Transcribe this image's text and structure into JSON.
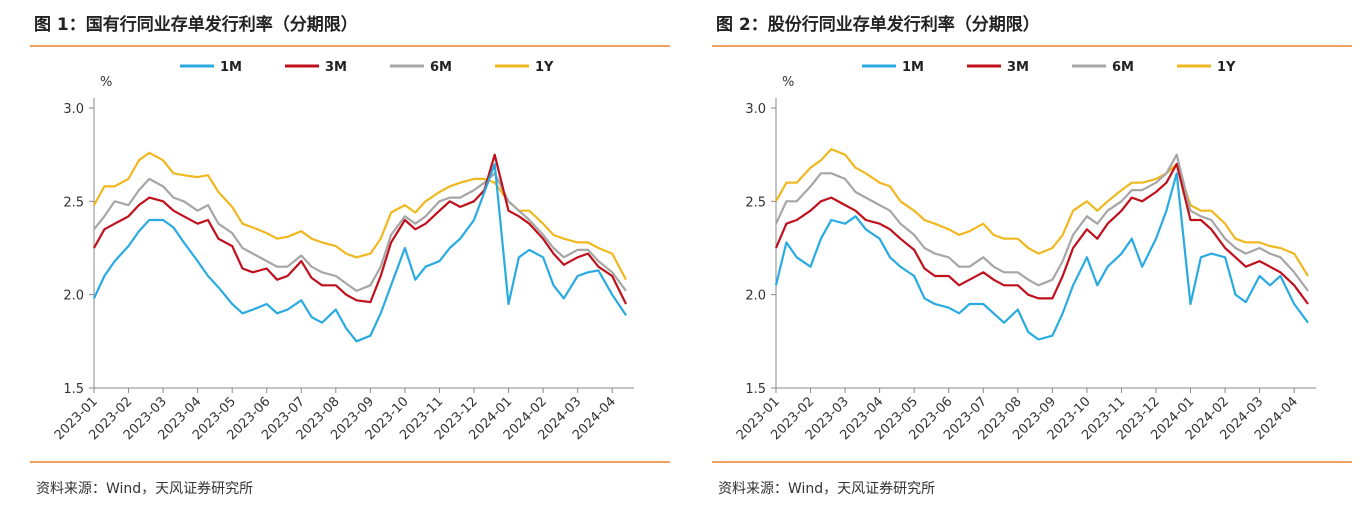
{
  "panels": [
    {
      "title": "图 1：国有行同业存单发行利率（分期限）",
      "source": "资料来源：Wind，天风证券研究所"
    },
    {
      "title": "图 2：股份行同业存单发行利率（分期限）",
      "source": "资料来源：Wind，天风证券研究所"
    }
  ],
  "chart_data": [
    {
      "type": "line",
      "title": "图 1：国有行同业存单发行利率（分期限）",
      "ylabel": "%",
      "ylim": [
        1.5,
        3.0
      ],
      "yticks": [
        "3.0",
        "2.5",
        "2.0",
        "1.5"
      ],
      "x_tick_labels": [
        "2023-01",
        "2023-02",
        "2023-03",
        "2023-04",
        "2023-05",
        "2023-06",
        "2023-07",
        "2023-08",
        "2023-09",
        "2023-10",
        "2023-11",
        "2023-12",
        "2024-01",
        "2024-02",
        "2024-03",
        "2024-04"
      ],
      "legend_position": "top",
      "grid": false,
      "x": [
        0,
        0.3,
        0.6,
        1,
        1.3,
        1.6,
        2,
        2.3,
        2.6,
        3,
        3.3,
        3.6,
        4,
        4.3,
        4.6,
        5,
        5.3,
        5.6,
        6,
        6.3,
        6.6,
        7,
        7.3,
        7.6,
        8,
        8.3,
        8.6,
        9,
        9.3,
        9.6,
        10,
        10.3,
        10.6,
        11,
        11.3,
        11.6,
        12,
        12.3,
        12.6,
        13,
        13.3,
        13.6,
        14,
        14.3,
        14.6,
        15,
        15.4
      ],
      "series": [
        {
          "name": "1M",
          "color": "#29abe2",
          "values": [
            1.98,
            2.1,
            2.18,
            2.26,
            2.34,
            2.4,
            2.4,
            2.36,
            2.28,
            2.18,
            2.1,
            2.04,
            1.95,
            1.9,
            1.92,
            1.95,
            1.9,
            1.92,
            1.97,
            1.88,
            1.85,
            1.92,
            1.82,
            1.75,
            1.78,
            1.9,
            2.05,
            2.25,
            2.08,
            2.15,
            2.18,
            2.25,
            2.3,
            2.4,
            2.55,
            2.7,
            1.95,
            2.2,
            2.24,
            2.2,
            2.05,
            1.98,
            2.1,
            2.12,
            2.13,
            2.0,
            1.89
          ]
        },
        {
          "name": "3M",
          "color": "#c0101c",
          "values": [
            2.25,
            2.35,
            2.38,
            2.42,
            2.48,
            2.52,
            2.5,
            2.45,
            2.42,
            2.38,
            2.4,
            2.3,
            2.26,
            2.14,
            2.12,
            2.14,
            2.08,
            2.1,
            2.18,
            2.09,
            2.05,
            2.05,
            2.0,
            1.97,
            1.96,
            2.1,
            2.28,
            2.4,
            2.35,
            2.38,
            2.45,
            2.5,
            2.47,
            2.5,
            2.56,
            2.75,
            2.45,
            2.42,
            2.38,
            2.3,
            2.22,
            2.16,
            2.2,
            2.22,
            2.15,
            2.1,
            1.95
          ]
        },
        {
          "name": "6M",
          "color": "#a6a6a6",
          "values": [
            2.35,
            2.42,
            2.5,
            2.48,
            2.56,
            2.62,
            2.58,
            2.52,
            2.5,
            2.45,
            2.48,
            2.38,
            2.33,
            2.25,
            2.22,
            2.18,
            2.15,
            2.15,
            2.21,
            2.15,
            2.12,
            2.1,
            2.06,
            2.02,
            2.05,
            2.15,
            2.32,
            2.42,
            2.38,
            2.42,
            2.5,
            2.52,
            2.52,
            2.56,
            2.6,
            2.65,
            2.5,
            2.45,
            2.4,
            2.32,
            2.25,
            2.2,
            2.24,
            2.24,
            2.18,
            2.12,
            2.02
          ]
        },
        {
          "name": "1Y",
          "color": "#f0b820",
          "values": [
            2.48,
            2.58,
            2.58,
            2.62,
            2.72,
            2.76,
            2.72,
            2.65,
            2.64,
            2.63,
            2.64,
            2.55,
            2.47,
            2.38,
            2.36,
            2.33,
            2.3,
            2.31,
            2.34,
            2.3,
            2.28,
            2.26,
            2.22,
            2.2,
            2.22,
            2.3,
            2.44,
            2.48,
            2.44,
            2.5,
            2.55,
            2.58,
            2.6,
            2.62,
            2.62,
            2.6,
            2.5,
            2.45,
            2.45,
            2.38,
            2.32,
            2.3,
            2.28,
            2.28,
            2.25,
            2.22,
            2.08
          ]
        }
      ]
    },
    {
      "type": "line",
      "title": "图 2：股份行同业存单发行利率（分期限）",
      "ylabel": "%",
      "ylim": [
        1.5,
        3.0
      ],
      "yticks": [
        "3.0",
        "2.5",
        "2.0",
        "1.5"
      ],
      "x_tick_labels": [
        "2023-01",
        "2023-02",
        "2023-03",
        "2023-04",
        "2023-05",
        "2023-06",
        "2023-07",
        "2023-08",
        "2023-09",
        "2023-10",
        "2023-11",
        "2023-12",
        "2024-01",
        "2024-02",
        "2024-03",
        "2024-04"
      ],
      "legend_position": "top",
      "grid": false,
      "x": [
        0,
        0.3,
        0.6,
        1,
        1.3,
        1.6,
        2,
        2.3,
        2.6,
        3,
        3.3,
        3.6,
        4,
        4.3,
        4.6,
        5,
        5.3,
        5.6,
        6,
        6.3,
        6.6,
        7,
        7.3,
        7.6,
        8,
        8.3,
        8.6,
        9,
        9.3,
        9.6,
        10,
        10.3,
        10.6,
        11,
        11.3,
        11.6,
        12,
        12.3,
        12.6,
        13,
        13.3,
        13.6,
        14,
        14.3,
        14.6,
        15,
        15.4
      ],
      "series": [
        {
          "name": "1M",
          "color": "#29abe2",
          "values": [
            2.05,
            2.28,
            2.2,
            2.15,
            2.3,
            2.4,
            2.38,
            2.42,
            2.35,
            2.3,
            2.2,
            2.15,
            2.1,
            1.98,
            1.95,
            1.93,
            1.9,
            1.95,
            1.95,
            1.9,
            1.85,
            1.92,
            1.8,
            1.76,
            1.78,
            1.9,
            2.05,
            2.2,
            2.05,
            2.15,
            2.22,
            2.3,
            2.15,
            2.3,
            2.45,
            2.65,
            1.95,
            2.2,
            2.22,
            2.2,
            2.0,
            1.96,
            2.1,
            2.05,
            2.1,
            1.95,
            1.85
          ]
        },
        {
          "name": "3M",
          "color": "#c0101c",
          "values": [
            2.25,
            2.38,
            2.4,
            2.45,
            2.5,
            2.52,
            2.48,
            2.45,
            2.4,
            2.38,
            2.35,
            2.3,
            2.24,
            2.14,
            2.1,
            2.1,
            2.05,
            2.08,
            2.12,
            2.08,
            2.05,
            2.05,
            2.0,
            1.98,
            1.98,
            2.1,
            2.25,
            2.35,
            2.3,
            2.38,
            2.45,
            2.52,
            2.5,
            2.55,
            2.6,
            2.7,
            2.4,
            2.4,
            2.35,
            2.25,
            2.2,
            2.15,
            2.18,
            2.15,
            2.12,
            2.05,
            1.95
          ]
        },
        {
          "name": "6M",
          "color": "#a6a6a6",
          "values": [
            2.38,
            2.5,
            2.5,
            2.58,
            2.65,
            2.65,
            2.62,
            2.55,
            2.52,
            2.48,
            2.45,
            2.38,
            2.32,
            2.25,
            2.22,
            2.2,
            2.15,
            2.15,
            2.2,
            2.15,
            2.12,
            2.12,
            2.08,
            2.05,
            2.08,
            2.18,
            2.32,
            2.42,
            2.38,
            2.45,
            2.5,
            2.56,
            2.56,
            2.6,
            2.65,
            2.75,
            2.45,
            2.42,
            2.4,
            2.3,
            2.25,
            2.22,
            2.25,
            2.22,
            2.2,
            2.12,
            2.02
          ]
        },
        {
          "name": "1Y",
          "color": "#f0b820",
          "values": [
            2.5,
            2.6,
            2.6,
            2.68,
            2.72,
            2.78,
            2.75,
            2.68,
            2.65,
            2.6,
            2.58,
            2.5,
            2.45,
            2.4,
            2.38,
            2.35,
            2.32,
            2.34,
            2.38,
            2.32,
            2.3,
            2.3,
            2.25,
            2.22,
            2.25,
            2.32,
            2.45,
            2.5,
            2.45,
            2.5,
            2.56,
            2.6,
            2.6,
            2.62,
            2.65,
            2.7,
            2.48,
            2.45,
            2.45,
            2.38,
            2.3,
            2.28,
            2.28,
            2.26,
            2.25,
            2.22,
            2.1
          ]
        }
      ]
    }
  ]
}
